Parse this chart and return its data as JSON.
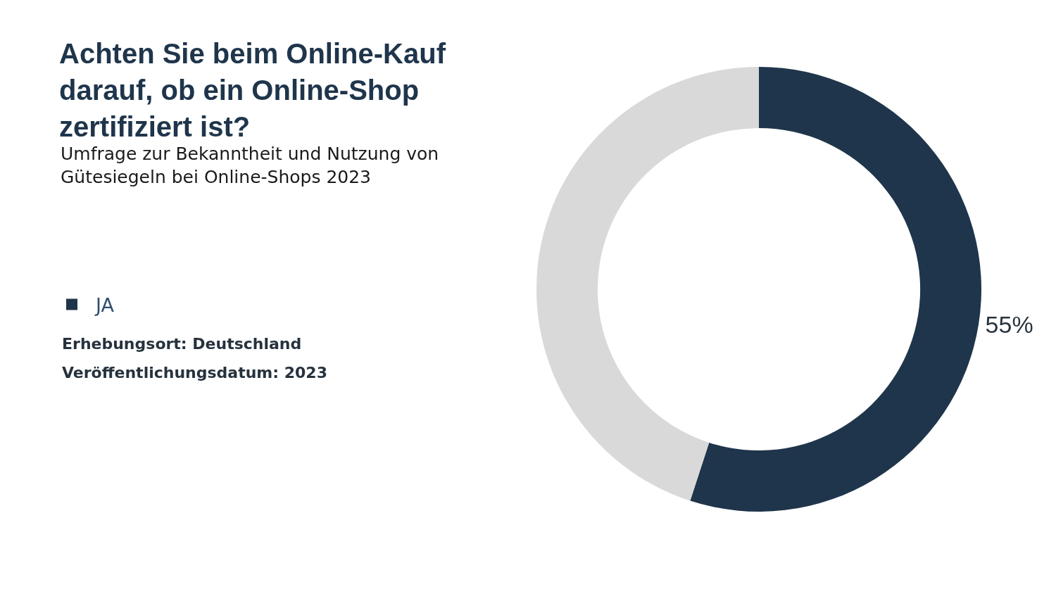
{
  "chart_data": {
    "type": "donut",
    "title": "Achten Sie beim Online-Kauf darauf, ob ein Online-Shop zertifiziert ist?",
    "subtitle": "Umfrage zur Bekanntheit und Nutzung von Gütesiegeln bei Online-Shops 2023",
    "categories": [
      "JA",
      null
    ],
    "values": [
      55,
      45
    ],
    "colors": [
      "#1f354b",
      "#d9d9d9"
    ],
    "value_labels": [
      "55%",
      null
    ],
    "legend": "left",
    "annotations": [
      "Erhebungsort: Deutschland",
      "Veröffentlichungsdatum: 2023"
    ]
  }
}
